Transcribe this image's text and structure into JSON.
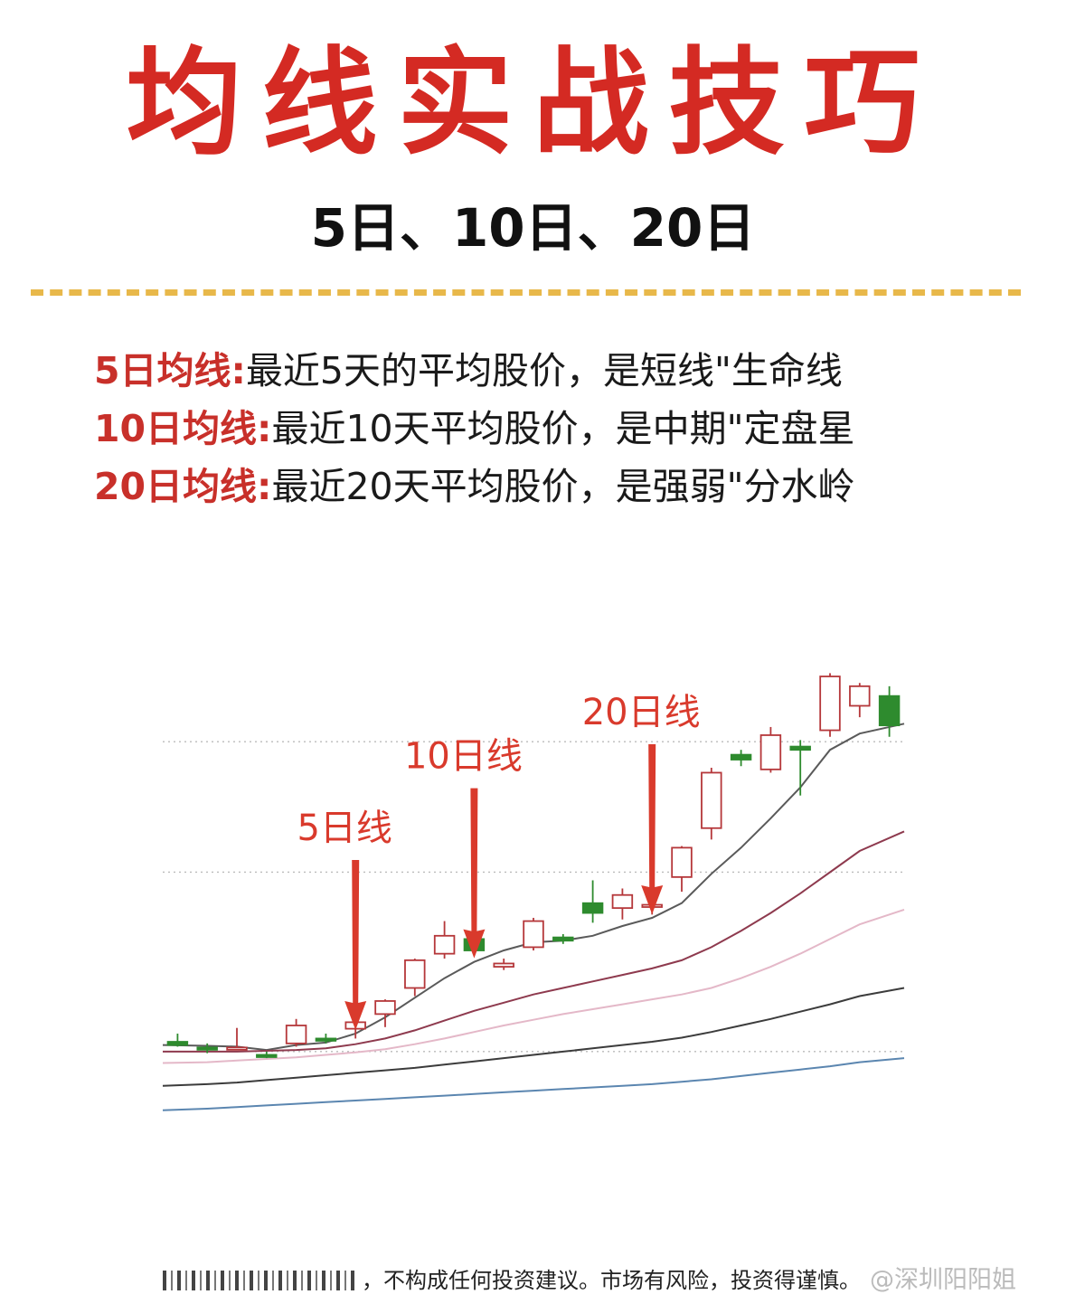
{
  "header": {
    "title": "均线实战技巧",
    "subtitle": "5日、10日、20日"
  },
  "definitions": [
    {
      "term": "5日均线:",
      "desc": "最近5天的平均股价，是短线\"生命线"
    },
    {
      "term": "10日均线:",
      "desc": "最近10天平均股价，是中期\"定盘星"
    },
    {
      "term": "20日均线:",
      "desc": "最近20天平均股价，是强弱\"分水岭"
    }
  ],
  "footer": {
    "disclaimer": "，不构成任何投资建议。市场有风险，投资得谨慎。",
    "watermark": "@深圳阳阳姐"
  },
  "colors": {
    "title": "#d42a23",
    "term": "#c8302a",
    "divider": "#e8b84a",
    "arrow": "#d93a2c",
    "candle_up": "#b5373a",
    "candle_down": "#2e8b2e"
  },
  "chart_data": {
    "type": "candlestick",
    "grid": "horizontal-dotted",
    "annotations": [
      {
        "label": "5日线",
        "target_index": 6
      },
      {
        "label": "10日线",
        "target_index": 10
      },
      {
        "label": "20日线",
        "target_index": 16
      }
    ],
    "candles": [
      {
        "o": 1.2,
        "h": 2.2,
        "l": 0.6,
        "c": 0.8
      },
      {
        "o": 0.5,
        "h": 1.0,
        "l": -0.2,
        "c": 0.3
      },
      {
        "o": 0.3,
        "h": 2.9,
        "l": 0.2,
        "c": 0.5
      },
      {
        "o": -0.4,
        "h": 0.0,
        "l": -0.8,
        "c": -0.6
      },
      {
        "o": 1.0,
        "h": 4.0,
        "l": 0.6,
        "c": 3.2
      },
      {
        "o": 1.6,
        "h": 2.2,
        "l": 1.0,
        "c": 1.4
      },
      {
        "o": 2.8,
        "h": 3.8,
        "l": 1.6,
        "c": 3.6
      },
      {
        "o": 4.6,
        "h": 6.4,
        "l": 3.0,
        "c": 6.2
      },
      {
        "o": 7.8,
        "h": 11.4,
        "l": 6.8,
        "c": 11.2
      },
      {
        "o": 12.0,
        "h": 16.0,
        "l": 11.4,
        "c": 14.2
      },
      {
        "o": 13.8,
        "h": 14.4,
        "l": 11.8,
        "c": 12.4
      },
      {
        "o": 10.4,
        "h": 11.4,
        "l": 10.0,
        "c": 10.8
      },
      {
        "o": 12.8,
        "h": 16.4,
        "l": 12.4,
        "c": 16.0
      },
      {
        "o": 14.0,
        "h": 14.4,
        "l": 13.2,
        "c": 13.6
      },
      {
        "o": 18.2,
        "h": 21.0,
        "l": 15.8,
        "c": 17.0
      },
      {
        "o": 17.6,
        "h": 20.0,
        "l": 16.2,
        "c": 19.2
      },
      {
        "o": 17.8,
        "h": 19.4,
        "l": 16.8,
        "c": 18.0
      },
      {
        "o": 21.4,
        "h": 25.2,
        "l": 19.6,
        "c": 25.0
      },
      {
        "o": 27.4,
        "h": 34.8,
        "l": 26.0,
        "c": 34.2
      },
      {
        "o": 36.4,
        "h": 37.0,
        "l": 35.0,
        "c": 35.8
      },
      {
        "o": 34.6,
        "h": 39.8,
        "l": 34.2,
        "c": 38.8
      },
      {
        "o": 37.4,
        "h": 38.2,
        "l": 31.4,
        "c": 37.0
      },
      {
        "o": 39.4,
        "h": 46.4,
        "l": 38.6,
        "c": 46.0
      },
      {
        "o": 42.4,
        "h": 45.2,
        "l": 41.0,
        "c": 44.8
      },
      {
        "o": 43.6,
        "h": 44.8,
        "l": 38.6,
        "c": 40.0
      }
    ],
    "ma_lines": [
      {
        "period": 5,
        "color": "#5a5a5a",
        "values": [
          0.8,
          0.7,
          0.6,
          0.2,
          0.8,
          1.1,
          2.2,
          4.2,
          6.6,
          9.0,
          11.0,
          12.4,
          13.4,
          13.6,
          14.2,
          15.4,
          16.4,
          18.2,
          21.8,
          25.0,
          28.6,
          32.4,
          37.0,
          39.0,
          40.2
        ]
      },
      {
        "period": 10,
        "color": "#8e3a4e",
        "values": [
          0.0,
          0.0,
          0.0,
          0.1,
          0.2,
          0.4,
          0.9,
          1.6,
          2.6,
          3.8,
          5.0,
          6.0,
          7.0,
          7.8,
          8.6,
          9.4,
          10.2,
          11.2,
          12.8,
          14.8,
          17.0,
          19.4,
          22.0,
          24.6,
          27.0
        ]
      },
      {
        "period": 20,
        "color": "#e4b8c8",
        "values": [
          -1.4,
          -1.3,
          -1.1,
          -0.9,
          -0.7,
          -0.4,
          -0.1,
          0.3,
          0.9,
          1.6,
          2.4,
          3.2,
          3.9,
          4.6,
          5.2,
          5.8,
          6.4,
          7.0,
          7.8,
          9.0,
          10.4,
          12.0,
          13.8,
          15.6,
          17.4
        ]
      },
      {
        "period": 30,
        "color": "#3c3c3c",
        "values": [
          -4.2,
          -4.0,
          -3.8,
          -3.5,
          -3.2,
          -2.9,
          -2.6,
          -2.3,
          -2.0,
          -1.6,
          -1.2,
          -0.8,
          -0.4,
          0.0,
          0.4,
          0.8,
          1.2,
          1.7,
          2.4,
          3.2,
          4.0,
          4.9,
          5.8,
          6.8,
          7.8
        ]
      },
      {
        "period": 60,
        "color": "#5b86b0",
        "values": [
          -7.2,
          -7.0,
          -6.8,
          -6.6,
          -6.4,
          -6.2,
          -6.0,
          -5.8,
          -5.6,
          -5.4,
          -5.2,
          -5.0,
          -4.8,
          -4.6,
          -4.4,
          -4.2,
          -4.0,
          -3.7,
          -3.4,
          -3.0,
          -2.6,
          -2.2,
          -1.8,
          -1.3,
          -0.8
        ]
      }
    ],
    "gridlines": [
      38,
      22,
      0
    ],
    "ylim": [
      -8,
      48
    ]
  }
}
